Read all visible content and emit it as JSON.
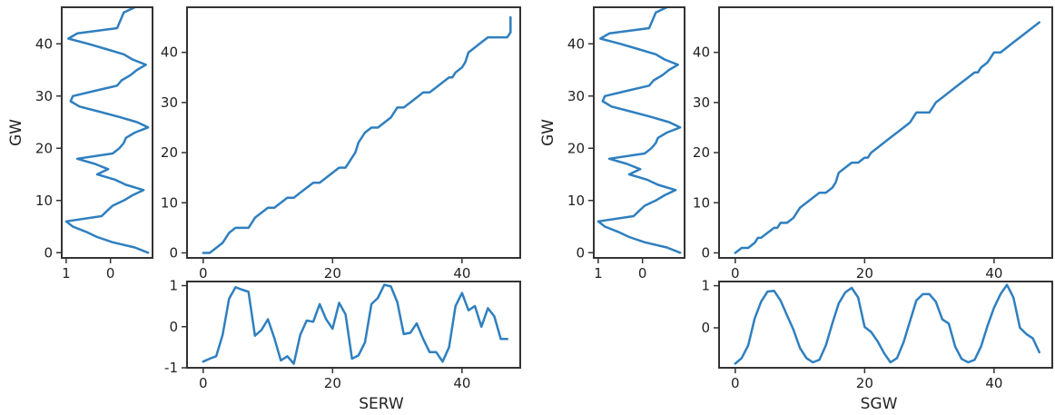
{
  "chart_data": [
    {
      "name": "left-figure",
      "type": "line",
      "series_color": "#2f7fbf",
      "y_axis_label": "GW",
      "x_axis_label": "SERW",
      "gw_range": [
        -1,
        47
      ],
      "side_panel": {
        "y": [
          0,
          1,
          2,
          3,
          4,
          5,
          6,
          7,
          8,
          9,
          10,
          11,
          12,
          13,
          14,
          15,
          16,
          17,
          18,
          19,
          20,
          21,
          22,
          23,
          24,
          25,
          26,
          27,
          28,
          29,
          30,
          31,
          32,
          33,
          34,
          35,
          36,
          37,
          38,
          39,
          40,
          41,
          42,
          43,
          44,
          45,
          46,
          47
        ],
        "x": [
          -0.85,
          -0.55,
          -0.05,
          0.3,
          0.55,
          0.85,
          1.0,
          0.2,
          0.08,
          -0.05,
          -0.3,
          -0.5,
          -0.75,
          -0.35,
          -0.1,
          0.3,
          0.05,
          0.35,
          0.75,
          -0.05,
          -0.2,
          -0.3,
          -0.35,
          -0.55,
          -0.85,
          -0.6,
          -0.2,
          0.25,
          0.7,
          0.9,
          0.85,
          0.35,
          -0.15,
          -0.25,
          -0.45,
          -0.6,
          -0.8,
          -0.5,
          -0.3,
          0.1,
          0.5,
          0.95,
          0.75,
          -0.15,
          -0.2,
          -0.25,
          -0.3,
          -0.55
        ],
        "xlim": [
          1.1,
          -0.95
        ],
        "xticks": [
          1,
          0
        ],
        "yticks": [
          0,
          10,
          20,
          30,
          40
        ]
      },
      "main_panel": {
        "x": [
          0,
          1,
          2,
          3,
          3.5,
          4,
          5,
          6,
          7,
          7.5,
          8,
          9,
          10,
          11,
          12,
          13,
          14,
          15,
          16,
          17,
          18,
          19,
          20,
          21,
          22,
          22.5,
          23,
          23.5,
          24,
          24.5,
          25,
          26,
          27,
          28,
          29,
          29.5,
          30,
          31,
          32,
          33,
          34,
          35,
          36,
          37,
          38,
          38.5,
          39,
          40,
          40.5,
          41,
          42,
          43,
          44,
          45,
          46,
          47,
          47.5,
          47.5
        ],
        "y": [
          0,
          0,
          1,
          2,
          3,
          4,
          5,
          5,
          5,
          6,
          7,
          8,
          9,
          9,
          10,
          11,
          11,
          12,
          13,
          14,
          14,
          15,
          16,
          17,
          17,
          18,
          19,
          20,
          22,
          23,
          24,
          25,
          25,
          26,
          27,
          28,
          29,
          29,
          30,
          31,
          32,
          32,
          33,
          34,
          35,
          35,
          36,
          37,
          38,
          40,
          41,
          42,
          43,
          43,
          43,
          43,
          44,
          47
        ],
        "xlim": [
          -2.5,
          49
        ],
        "ylim": [
          -1,
          49
        ],
        "xticks": [
          0,
          20,
          40
        ],
        "yticks": [
          0,
          10,
          20,
          30,
          40
        ]
      },
      "bottom_panel": {
        "x": [
          0,
          1,
          2,
          3,
          4,
          5,
          6,
          7,
          8,
          9,
          10,
          11,
          12,
          13,
          14,
          15,
          16,
          17,
          18,
          19,
          20,
          21,
          22,
          23,
          24,
          25,
          26,
          27,
          28,
          29,
          30,
          31,
          32,
          33,
          34,
          35,
          36,
          37,
          38,
          39,
          40,
          41,
          42,
          43,
          44,
          45,
          46,
          47
        ],
        "y": [
          -0.85,
          -0.78,
          -0.72,
          -0.2,
          0.68,
          0.96,
          0.9,
          0.85,
          -0.22,
          -0.08,
          0.18,
          -0.28,
          -0.82,
          -0.72,
          -0.9,
          -0.2,
          0.15,
          0.12,
          0.55,
          0.18,
          -0.05,
          0.58,
          0.3,
          -0.78,
          -0.7,
          -0.38,
          0.55,
          0.7,
          1.02,
          0.98,
          0.6,
          -0.18,
          -0.15,
          0.08,
          -0.3,
          -0.62,
          -0.62,
          -0.85,
          -0.5,
          0.5,
          0.82,
          0.4,
          0.5,
          0.0,
          0.45,
          0.25,
          -0.3,
          -0.3
        ],
        "xlim": [
          -2.5,
          49
        ],
        "ylim": [
          -1,
          1.1
        ],
        "xticks": [
          0,
          20,
          40
        ],
        "yticks": [
          -1,
          0,
          1
        ]
      }
    },
    {
      "name": "right-figure",
      "type": "line",
      "series_color": "#2f7fbf",
      "y_axis_label": "GW",
      "x_axis_label": "SGW",
      "gw_range": [
        -1,
        47
      ],
      "side_panel": {
        "y": [
          0,
          1,
          2,
          3,
          4,
          5,
          6,
          7,
          8,
          9,
          10,
          11,
          12,
          13,
          14,
          15,
          16,
          17,
          18,
          19,
          20,
          21,
          22,
          23,
          24,
          25,
          26,
          27,
          28,
          29,
          30,
          31,
          32,
          33,
          34,
          35,
          36,
          37,
          38,
          39,
          40,
          41,
          42,
          43,
          44,
          45,
          46,
          47
        ],
        "x": [
          -0.85,
          -0.55,
          -0.05,
          0.3,
          0.55,
          0.85,
          1.0,
          0.2,
          0.08,
          -0.05,
          -0.3,
          -0.5,
          -0.75,
          -0.35,
          -0.1,
          0.3,
          0.05,
          0.35,
          0.75,
          -0.05,
          -0.2,
          -0.3,
          -0.35,
          -0.55,
          -0.85,
          -0.6,
          -0.2,
          0.25,
          0.7,
          0.9,
          0.85,
          0.35,
          -0.15,
          -0.25,
          -0.45,
          -0.6,
          -0.8,
          -0.5,
          -0.3,
          0.1,
          0.5,
          0.95,
          0.75,
          -0.15,
          -0.2,
          -0.25,
          -0.3,
          -0.55
        ],
        "xlim": [
          1.1,
          -0.95
        ],
        "xticks": [
          1,
          0
        ],
        "yticks": [
          0,
          10,
          20,
          30,
          40
        ]
      },
      "main_panel": {
        "x": [
          0,
          1,
          2,
          3,
          3.5,
          4,
          5,
          6,
          6.5,
          7,
          8,
          9,
          9.5,
          10,
          11,
          12,
          13,
          14,
          15,
          15.5,
          16,
          17,
          18,
          19,
          20,
          20.5,
          21,
          22,
          23,
          24,
          25,
          26,
          27,
          27.5,
          28,
          29,
          30,
          30.5,
          31,
          32,
          33,
          34,
          35,
          36,
          37,
          37.5,
          38,
          39,
          39.5,
          40,
          41,
          42,
          43,
          44,
          45,
          46,
          47
        ],
        "y": [
          0,
          1,
          1,
          2,
          3,
          3,
          4,
          5,
          5,
          6,
          6,
          7,
          8,
          9,
          10,
          11,
          12,
          12,
          13,
          14,
          16,
          17,
          18,
          18,
          19,
          19,
          20,
          21,
          22,
          23,
          24,
          25,
          26,
          27,
          28,
          28,
          28,
          29,
          30,
          31,
          32,
          33,
          34,
          35,
          36,
          36,
          37,
          38,
          39,
          40,
          40,
          41,
          42,
          43,
          44,
          45,
          46
        ],
        "xlim": [
          -2.5,
          49
        ],
        "ylim": [
          -1,
          49
        ],
        "xticks": [
          0,
          20,
          40
        ],
        "yticks": [
          0,
          10,
          20,
          30,
          40
        ]
      },
      "bottom_panel": {
        "x": [
          0,
          1,
          2,
          3,
          4,
          5,
          6,
          7,
          8,
          9,
          10,
          11,
          12,
          13,
          14,
          15,
          16,
          17,
          18,
          19,
          20,
          21,
          22,
          23,
          24,
          25,
          26,
          27,
          28,
          29,
          30,
          31,
          32,
          33,
          34,
          35,
          36,
          37,
          38,
          39,
          40,
          41,
          42,
          43,
          44,
          45,
          46,
          47
        ],
        "y": [
          -0.85,
          -0.72,
          -0.42,
          0.22,
          0.62,
          0.86,
          0.88,
          0.65,
          0.3,
          -0.05,
          -0.48,
          -0.72,
          -0.82,
          -0.76,
          -0.42,
          0.1,
          0.58,
          0.84,
          0.95,
          0.72,
          0.02,
          -0.1,
          -0.32,
          -0.6,
          -0.82,
          -0.72,
          -0.35,
          0.15,
          0.65,
          0.8,
          0.8,
          0.62,
          0.2,
          0.1,
          -0.45,
          -0.74,
          -0.82,
          -0.76,
          -0.44,
          0.05,
          0.48,
          0.8,
          1.02,
          0.72,
          0.0,
          -0.15,
          -0.25,
          -0.58
        ],
        "xlim": [
          -2.5,
          49
        ],
        "ylim": [
          -0.95,
          1.1
        ],
        "xticks": [
          0,
          20,
          40
        ],
        "yticks": [
          0,
          1
        ]
      }
    }
  ]
}
